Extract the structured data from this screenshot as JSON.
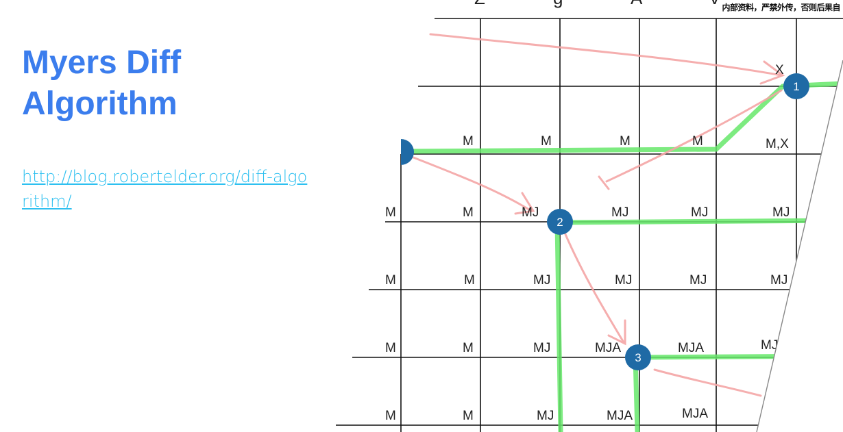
{
  "slide": {
    "title_line1": "Myers Diff",
    "title_line2": "Algorithm",
    "link_text": "http://blog.robertelder.org/diff-algorithm/"
  },
  "figure": {
    "header_letters": [
      "Z",
      "g",
      "A",
      "V"
    ],
    "watermark": "内部资料，严禁外传，否则后果自",
    "node_labels": [
      "1",
      "2",
      "3"
    ],
    "cell_labels": [
      [
        "X"
      ],
      [
        "M",
        "M",
        "M",
        "M",
        "M,X"
      ],
      [
        "M",
        "M",
        "MJ",
        "MJ",
        "MJ",
        "MJ"
      ],
      [
        "M",
        "M",
        "MJ",
        "MJ",
        "MJ",
        "MJ"
      ],
      [
        "M",
        "M",
        "MJ",
        "MJA",
        "MJA",
        "MJ"
      ],
      [
        "M",
        "M",
        "MJ",
        "MJA",
        "MJA"
      ]
    ]
  },
  "colors": {
    "title": "#3b7ded",
    "link": "#2ec0f0",
    "node": "#1f6aa5",
    "path": "#66e86a",
    "annotation": "#f4a6a6"
  }
}
